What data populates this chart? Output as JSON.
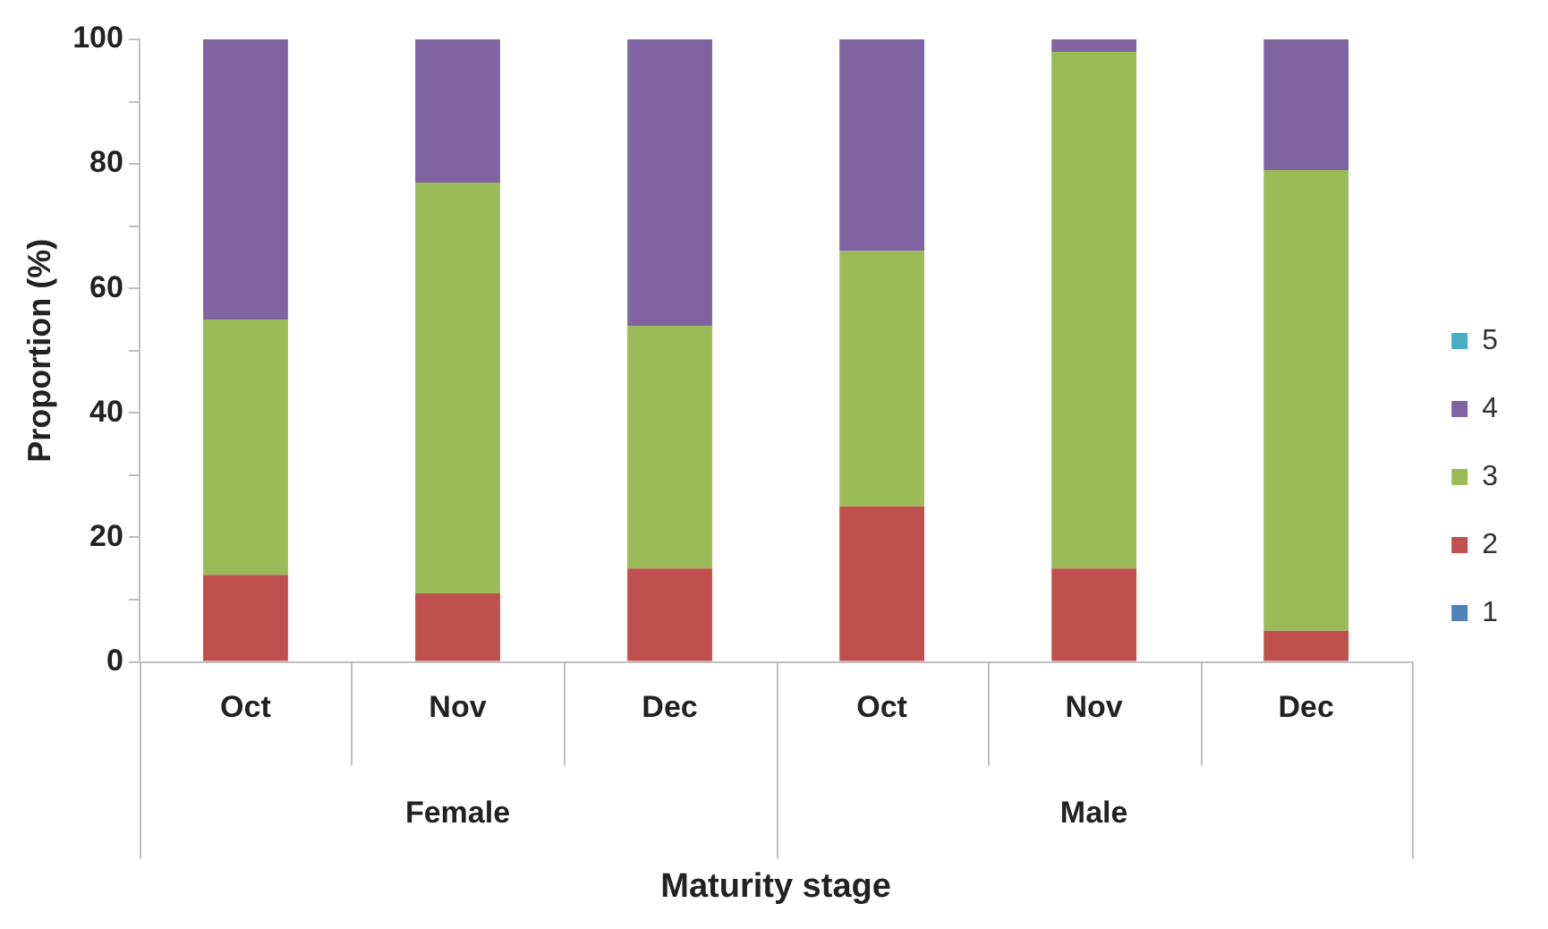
{
  "chart_data": {
    "type": "bar",
    "stacked": true,
    "xlabel": "Maturity stage",
    "ylabel": "Proportion (%)",
    "categories": [
      "Oct",
      "Nov",
      "Dec",
      "Oct",
      "Nov",
      "Dec"
    ],
    "annotations": [
      "Female",
      "Male"
    ],
    "series": [
      {
        "name": "1",
        "color": "#4f81bd",
        "values": [
          0,
          0,
          0,
          0,
          0,
          0
        ]
      },
      {
        "name": "2",
        "color": "#c0504d",
        "values": [
          14,
          11,
          15,
          25,
          15,
          5
        ]
      },
      {
        "name": "3",
        "color": "#9bbb59",
        "values": [
          41,
          66,
          39,
          41,
          83,
          74
        ]
      },
      {
        "name": "4",
        "color": "#8064a2",
        "values": [
          45,
          23,
          46,
          34,
          2,
          21
        ]
      },
      {
        "name": "5",
        "color": "#4bacc6",
        "values": [
          0,
          0,
          0,
          0,
          0,
          0
        ]
      }
    ],
    "ylim": [
      0,
      100
    ],
    "yticks": [
      0,
      {
        "value": 10,
        "label": null
      },
      20,
      {
        "value": 30,
        "label": null
      },
      40,
      {
        "value": 50,
        "label": null
      },
      60,
      {
        "value": 70,
        "label": null
      },
      80,
      {
        "value": 90,
        "label": null
      },
      100
    ],
    "grid": false,
    "legend": "right"
  }
}
